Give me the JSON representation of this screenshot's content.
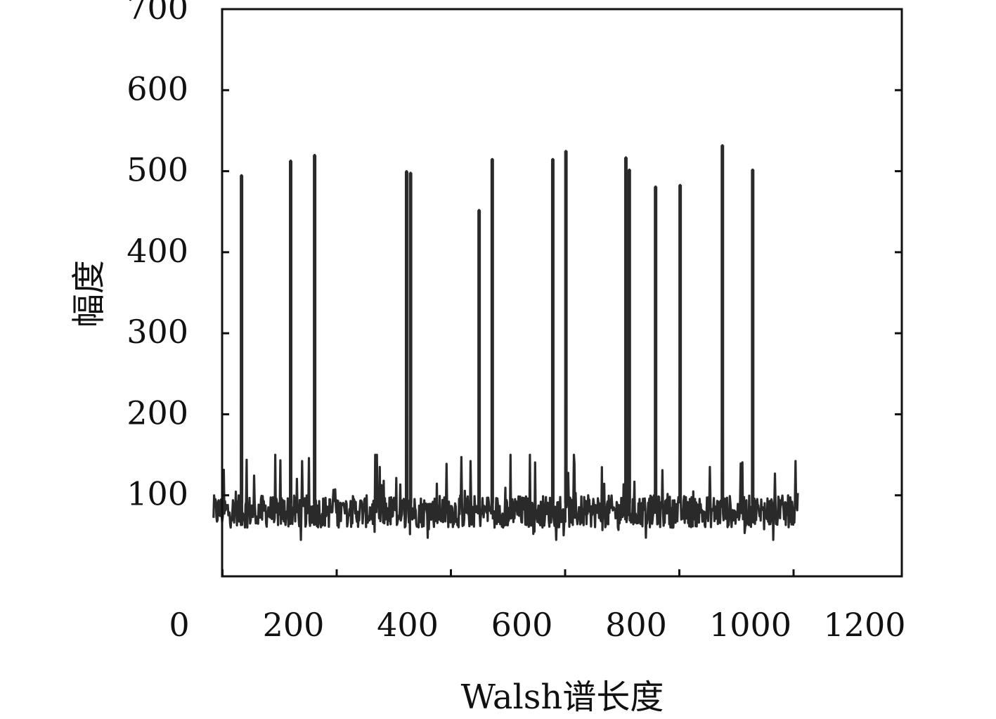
{
  "chart_data": {
    "type": "line",
    "xlabel": "Walsh谱长度",
    "ylabel": "幅度",
    "xlim": [
      0,
      1200
    ],
    "ylim": [
      0,
      700
    ],
    "x_ticks": [
      0,
      200,
      400,
      600,
      800,
      1000,
      1200
    ],
    "y_ticks": [
      100,
      200,
      300,
      400,
      500,
      600,
      700
    ],
    "grid": false,
    "line_color": "#2a2a2a",
    "series": [
      {
        "x_range": [
          1,
          1024
        ],
        "baseline_mean": 80,
        "noise_range": [
          45,
          150
        ],
        "peaks": [
          {
            "x": 50,
            "y": 495
          },
          {
            "x": 136,
            "y": 513
          },
          {
            "x": 178,
            "y": 520
          },
          {
            "x": 339,
            "y": 500
          },
          {
            "x": 346,
            "y": 498
          },
          {
            "x": 466,
            "y": 452
          },
          {
            "x": 489,
            "y": 515
          },
          {
            "x": 595,
            "y": 515
          },
          {
            "x": 618,
            "y": 525
          },
          {
            "x": 723,
            "y": 517
          },
          {
            "x": 729,
            "y": 502
          },
          {
            "x": 775,
            "y": 481
          },
          {
            "x": 818,
            "y": 483
          },
          {
            "x": 892,
            "y": 532
          },
          {
            "x": 945,
            "y": 502
          }
        ]
      }
    ]
  }
}
